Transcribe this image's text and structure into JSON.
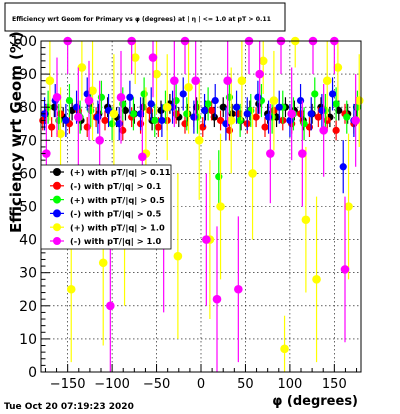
{
  "chart_data": {
    "type": "scatter",
    "title": "Efficiency wrt Geom for Primary vs φ (degrees) at | η | <= 1.0 at pT > 0.11",
    "xlabel": "φ (degrees)",
    "ylabel": "Efficiency wrt Geom (%)",
    "xlim": [
      -180,
      180
    ],
    "ylim": [
      0,
      100
    ],
    "x_ticks": [
      -150,
      -100,
      -50,
      0,
      50,
      100,
      150
    ],
    "y_ticks": [
      0,
      10,
      20,
      30,
      40,
      50,
      60,
      70,
      80,
      90,
      100
    ],
    "grid": true,
    "legend_position": "center-left",
    "timestamp": "Tue Oct 20 07:19:23 2020",
    "series": [
      {
        "name": "(+) with pT/|q| > 0.11",
        "color": "#000000",
        "x": [
          -175,
          -165,
          -155,
          -145,
          -135,
          -125,
          -115,
          -105,
          -95,
          -85,
          -75,
          -65,
          -55,
          -45,
          -35,
          -25,
          -15,
          -5,
          5,
          15,
          25,
          35,
          45,
          55,
          65,
          75,
          85,
          95,
          105,
          115,
          125,
          135,
          145,
          155,
          165,
          175
        ],
        "y": [
          78,
          80,
          77,
          79,
          76,
          81,
          78,
          80,
          77,
          79,
          78,
          80,
          76,
          79,
          81,
          77,
          78,
          80,
          79,
          77,
          80,
          78,
          76,
          79,
          81,
          78,
          77,
          80,
          79,
          76,
          78,
          80,
          77,
          79,
          78,
          80
        ],
        "err": [
          3,
          3,
          3,
          3,
          3,
          3,
          3,
          3,
          3,
          3,
          3,
          3,
          3,
          3,
          3,
          3,
          3,
          3,
          3,
          3,
          3,
          3,
          3,
          3,
          3,
          3,
          3,
          3,
          3,
          3,
          3,
          3,
          3,
          3,
          3,
          3
        ]
      },
      {
        "name": "(-) with pT/|q| > 0.1",
        "color": "#ff0000",
        "x": [
          -178,
          -168,
          -158,
          -148,
          -138,
          -128,
          -118,
          -108,
          -98,
          -88,
          -78,
          -68,
          -58,
          -48,
          -38,
          -28,
          -18,
          -8,
          2,
          12,
          22,
          32,
          42,
          52,
          62,
          72,
          82,
          92,
          102,
          112,
          122,
          132,
          142,
          152,
          162,
          172
        ],
        "y": [
          76,
          74,
          78,
          75,
          79,
          74,
          77,
          76,
          78,
          73,
          77,
          75,
          79,
          74,
          76,
          78,
          75,
          77,
          74,
          79,
          76,
          73,
          78,
          75,
          77,
          74,
          79,
          76,
          75,
          78,
          74,
          77,
          76,
          73,
          78,
          75
        ],
        "err": [
          3,
          3,
          3,
          3,
          3,
          3,
          3,
          3,
          3,
          3,
          3,
          3,
          3,
          3,
          3,
          3,
          3,
          3,
          3,
          3,
          3,
          3,
          3,
          3,
          3,
          3,
          3,
          3,
          3,
          3,
          3,
          3,
          3,
          3,
          3,
          3
        ]
      },
      {
        "name": "(+) with pT/|q| > 0.5",
        "color": "#00ff00",
        "x": [
          -172,
          -160,
          -148,
          -136,
          -124,
          -112,
          -100,
          -88,
          -76,
          -64,
          -52,
          -40,
          -28,
          -16,
          -4,
          8,
          20,
          32,
          44,
          56,
          68,
          80,
          92,
          104,
          116,
          128,
          140,
          152,
          164,
          176
        ],
        "y": [
          80,
          76,
          82,
          77,
          79,
          83,
          75,
          81,
          78,
          84,
          76,
          80,
          82,
          78,
          77,
          81,
          59,
          83,
          76,
          79,
          82,
          77,
          80,
          78,
          75,
          84,
          79,
          81,
          77,
          80
        ],
        "err": [
          5,
          5,
          5,
          5,
          5,
          5,
          5,
          5,
          5,
          5,
          5,
          5,
          5,
          5,
          5,
          5,
          8,
          5,
          5,
          5,
          5,
          5,
          5,
          5,
          5,
          5,
          5,
          5,
          5,
          5
        ]
      },
      {
        "name": "(-) with pT/|q| > 0.5",
        "color": "#0000ff",
        "x": [
          -176,
          -164,
          -152,
          -140,
          -128,
          -116,
          -104,
          -92,
          -80,
          -68,
          -56,
          -44,
          -32,
          -20,
          -8,
          4,
          16,
          28,
          40,
          52,
          64,
          76,
          88,
          100,
          112,
          124,
          136,
          148,
          160,
          172
        ],
        "y": [
          78,
          82,
          76,
          80,
          84,
          77,
          79,
          75,
          83,
          78,
          81,
          76,
          80,
          84,
          77,
          79,
          82,
          75,
          80,
          78,
          83,
          77,
          80,
          76,
          82,
          78,
          79,
          84,
          62,
          76
        ],
        "err": [
          5,
          5,
          5,
          5,
          5,
          5,
          5,
          5,
          5,
          5,
          5,
          5,
          5,
          5,
          5,
          5,
          5,
          5,
          5,
          5,
          5,
          5,
          5,
          5,
          5,
          5,
          5,
          5,
          8,
          5
        ]
      },
      {
        "name": "(+) with pT/|q| > 1.0",
        "color": "#ffff00",
        "x": [
          -170,
          -158,
          -146,
          -134,
          -122,
          -110,
          -98,
          -86,
          -74,
          -62,
          -50,
          -38,
          -26,
          -14,
          -2,
          10,
          22,
          34,
          46,
          58,
          70,
          82,
          94,
          106,
          118,
          130,
          142,
          154,
          166,
          178
        ],
        "y": [
          88,
          72,
          25,
          92,
          85,
          33,
          78,
          40,
          95,
          66,
          90,
          80,
          35,
          86,
          70,
          40,
          50,
          76,
          88,
          60,
          94,
          82,
          7,
          100,
          46,
          28,
          88,
          92,
          50,
          82
        ],
        "err": [
          12,
          14,
          22,
          10,
          15,
          25,
          18,
          20,
          8,
          20,
          12,
          16,
          25,
          14,
          18,
          24,
          22,
          16,
          12,
          20,
          10,
          15,
          10,
          8,
          22,
          25,
          12,
          10,
          22,
          14
        ]
      },
      {
        "name": "(-) with pT/|q| > 1.0",
        "color": "#ff00ff",
        "x": [
          -174,
          -162,
          -150,
          -138,
          -126,
          -114,
          -102,
          -90,
          -78,
          -66,
          -54,
          -42,
          -30,
          -18,
          -6,
          6,
          18,
          30,
          42,
          54,
          66,
          78,
          90,
          102,
          114,
          126,
          138,
          150,
          162,
          174
        ],
        "y": [
          66,
          83,
          100,
          77,
          82,
          70,
          20,
          83,
          100,
          65,
          95,
          40,
          88,
          100,
          88,
          40,
          22,
          88,
          25,
          100,
          90,
          66,
          100,
          78,
          66,
          100,
          73,
          100,
          31,
          76
        ],
        "err": [
          15,
          12,
          10,
          15,
          12,
          18,
          20,
          14,
          10,
          16,
          12,
          22,
          14,
          10,
          12,
          20,
          22,
          14,
          22,
          10,
          12,
          15,
          10,
          14,
          16,
          10,
          14,
          10,
          22,
          14
        ]
      }
    ]
  }
}
